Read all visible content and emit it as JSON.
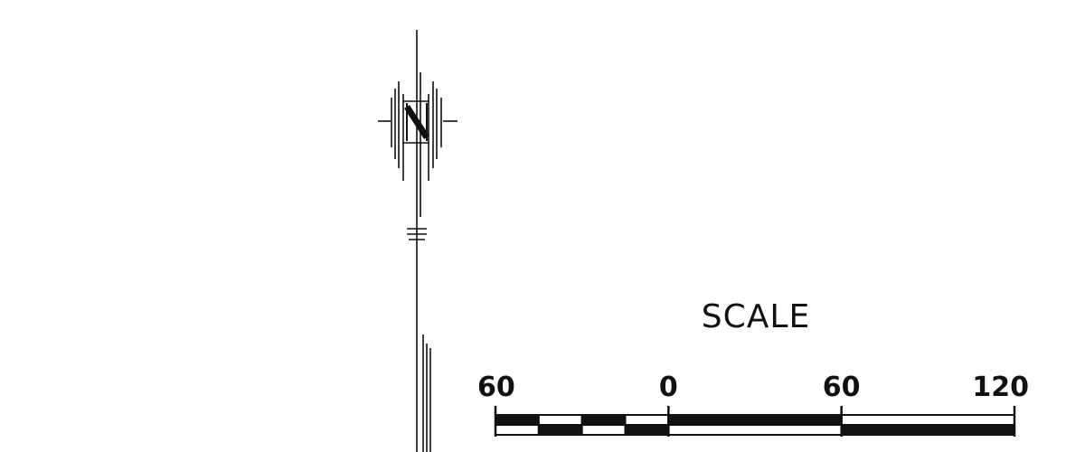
{
  "north_arrow": {
    "letter": "N",
    "icon": "north-arrow-icon"
  },
  "scale_bar": {
    "title": "SCALE",
    "ticks": [
      {
        "label": "60",
        "value": -60
      },
      {
        "label": "0",
        "value": 0
      },
      {
        "label": "60",
        "value": 60
      },
      {
        "label": "120",
        "value": 120
      }
    ],
    "segments": [
      {
        "from": -60,
        "to": -45
      },
      {
        "from": -45,
        "to": -30
      },
      {
        "from": -30,
        "to": -15
      },
      {
        "from": -15,
        "to": 0
      },
      {
        "from": 0,
        "to": 60
      },
      {
        "from": 60,
        "to": 120
      }
    ],
    "range": [
      -60,
      120
    ],
    "colors": {
      "ink": "#111111",
      "paper": "#ffffff"
    }
  }
}
